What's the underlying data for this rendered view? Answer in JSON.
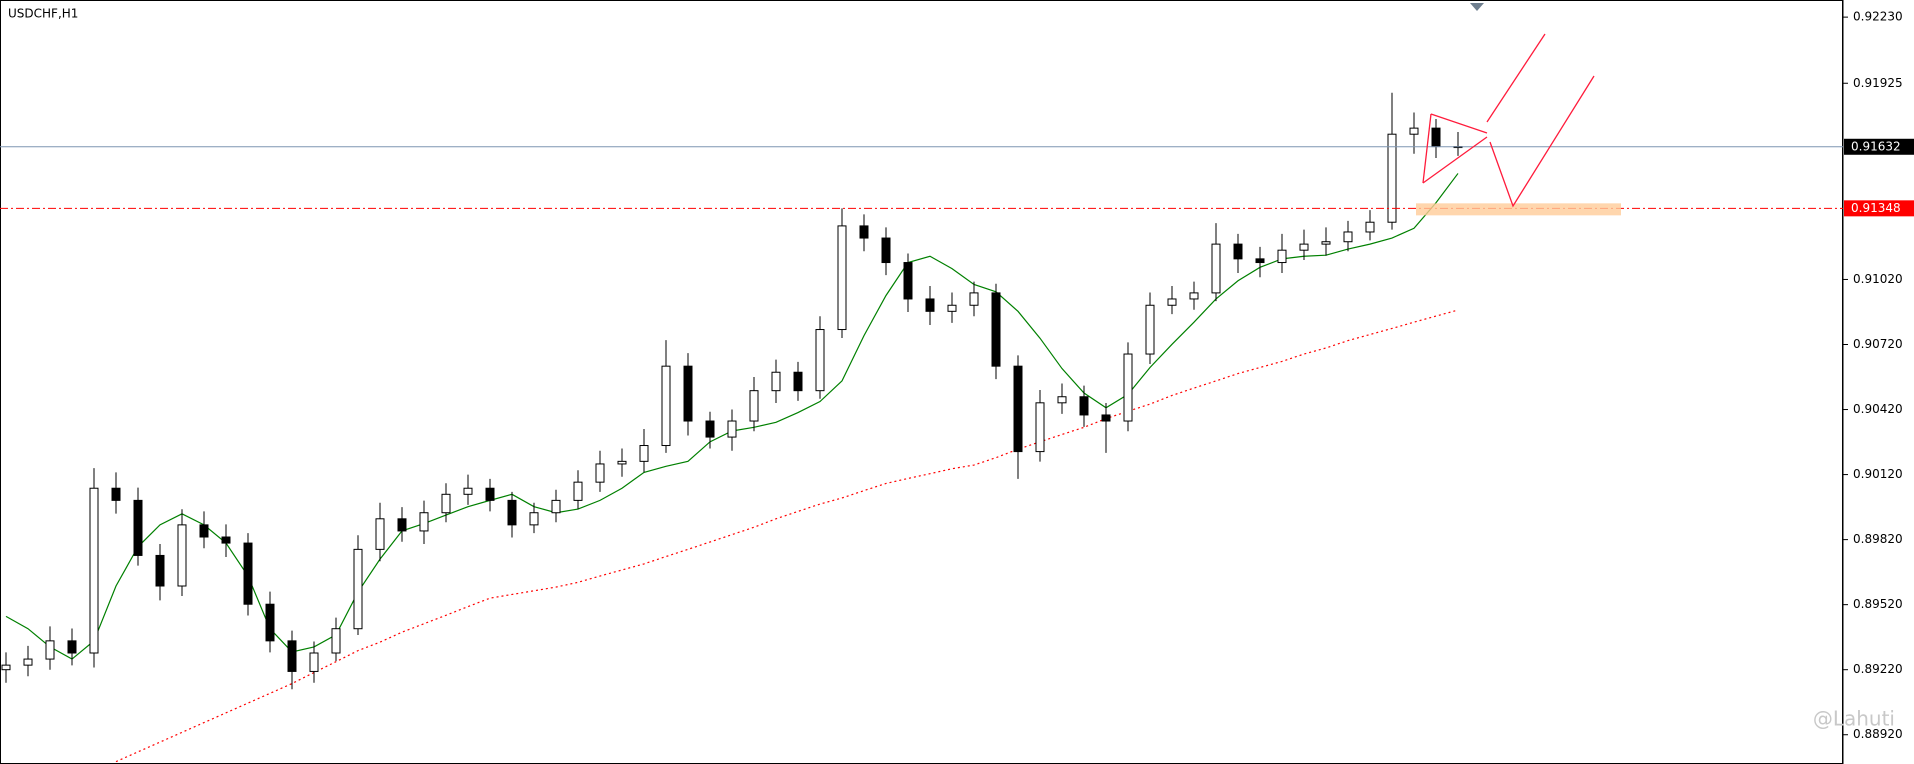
{
  "chart_data": {
    "type": "candlestick",
    "title": "USDCHF,H1",
    "open": [
      0.8922,
      0.89241,
      0.89269,
      0.89353,
      0.89297,
      0.90057,
      0.90001,
      0.89747,
      0.89606,
      0.89888,
      0.89832,
      0.89804,
      0.89522,
      0.89353,
      0.89212,
      0.89297,
      0.89409,
      0.89775,
      0.89916,
      0.8986,
      0.89944,
      0.90029,
      0.90057,
      0.90001,
      0.89888,
      0.89944,
      0.90001,
      0.90085,
      0.90169,
      0.90181,
      0.90254,
      0.9062,
      0.90367,
      0.90293,
      0.90367,
      0.90507,
      0.90592,
      0.90507,
      0.90789,
      0.91267,
      0.91211,
      0.91098,
      0.9093,
      0.90873,
      0.90901,
      0.90958,
      0.9062,
      0.90226,
      0.90451,
      0.90479,
      0.90395,
      0.90367,
      0.90676,
      0.90901,
      0.9093,
      0.90958,
      0.91183,
      0.91115,
      0.91098,
      0.91155,
      0.91183,
      0.91194,
      0.91239,
      0.91284,
      0.9169,
      0.91718,
      0.91633
    ],
    "high": [
      0.893,
      0.8933,
      0.8942,
      0.8941,
      0.9015,
      0.9013,
      0.9006,
      0.898,
      0.8996,
      0.8995,
      0.8989,
      0.8985,
      0.8958,
      0.894,
      0.8935,
      0.8946,
      0.8984,
      0.8999,
      0.8997,
      0.9,
      0.9008,
      0.9012,
      0.901,
      0.9004,
      0.8999,
      0.9005,
      0.9014,
      0.9023,
      0.9024,
      0.9033,
      0.9074,
      0.9068,
      0.9041,
      0.9042,
      0.9057,
      0.9065,
      0.9064,
      0.9085,
      0.91348,
      0.9132,
      0.9126,
      0.9114,
      0.9099,
      0.9096,
      0.9101,
      0.91,
      0.9067,
      0.9051,
      0.9054,
      0.9053,
      0.9045,
      0.9073,
      0.9096,
      0.9099,
      0.9101,
      0.9128,
      0.9123,
      0.9117,
      0.9123,
      0.9125,
      0.9126,
      0.9129,
      0.9134,
      0.91881,
      0.9179,
      0.9176,
      0.917
    ],
    "low": [
      0.8916,
      0.8919,
      0.8922,
      0.8924,
      0.8923,
      0.8994,
      0.897,
      0.8954,
      0.8956,
      0.8978,
      0.8974,
      0.8947,
      0.893,
      0.8913,
      0.8916,
      0.8926,
      0.8938,
      0.8972,
      0.8981,
      0.898,
      0.899,
      0.8998,
      0.8995,
      0.8983,
      0.8985,
      0.899,
      0.8996,
      0.9004,
      0.9011,
      0.9013,
      0.9022,
      0.903,
      0.9024,
      0.9023,
      0.9032,
      0.9045,
      0.9046,
      0.9047,
      0.9075,
      0.9115,
      0.9104,
      0.9087,
      0.9081,
      0.9082,
      0.9085,
      0.9056,
      0.901,
      0.9018,
      0.904,
      0.9034,
      0.9022,
      0.9032,
      0.9063,
      0.9086,
      0.9088,
      0.9092,
      0.9105,
      0.9103,
      0.9105,
      0.9111,
      0.9113,
      0.9115,
      0.912,
      0.9125,
      0.916,
      0.9158,
      0.9159
    ],
    "close": [
      0.89241,
      0.89269,
      0.89353,
      0.89297,
      0.90057,
      0.90001,
      0.89747,
      0.89606,
      0.89888,
      0.89832,
      0.89804,
      0.89522,
      0.89353,
      0.89212,
      0.89297,
      0.89409,
      0.89775,
      0.89916,
      0.8986,
      0.89944,
      0.90029,
      0.90057,
      0.90001,
      0.89888,
      0.89944,
      0.90001,
      0.90085,
      0.90169,
      0.90181,
      0.90254,
      0.9062,
      0.90367,
      0.90293,
      0.90367,
      0.90507,
      0.90592,
      0.90507,
      0.90789,
      0.91267,
      0.91211,
      0.91098,
      0.9093,
      0.90873,
      0.90901,
      0.90958,
      0.9062,
      0.90226,
      0.90451,
      0.90479,
      0.90395,
      0.90367,
      0.90676,
      0.90901,
      0.9093,
      0.90958,
      0.91183,
      0.91115,
      0.91098,
      0.91155,
      0.91183,
      0.91194,
      0.91239,
      0.91284,
      0.9169,
      0.91718,
      0.91633,
      0.91632
    ],
    "moving_averages": [
      {
        "color": "#008000",
        "style": "solid",
        "values": [
          0.89466,
          0.89409,
          0.89325,
          0.89269,
          0.89353,
          0.89606,
          0.89787,
          0.89888,
          0.89939,
          0.89888,
          0.89804,
          0.89652,
          0.89409,
          0.89302,
          0.89325,
          0.89381,
          0.89578,
          0.8973,
          0.8986,
          0.89894,
          0.89933,
          0.89972,
          0.90001,
          0.90029,
          0.89972,
          0.89944,
          0.89961,
          0.90001,
          0.90057,
          0.9013,
          0.90158,
          0.90181,
          0.90271,
          0.90321,
          0.90338,
          0.90361,
          0.90406,
          0.90457,
          0.90552,
          0.90761,
          0.90946,
          0.91098,
          0.91127,
          0.9107,
          0.90997,
          0.90963,
          0.90873,
          0.90749,
          0.90609,
          0.90496,
          0.90428,
          0.9049,
          0.90614,
          0.90721,
          0.90823,
          0.9093,
          0.91014,
          0.91076,
          0.91115,
          0.91127,
          0.91132,
          0.9116,
          0.91183,
          0.91211,
          0.91256,
          0.91374,
          0.91509
        ]
      },
      {
        "color": "#ff0000",
        "style": "dotted",
        "values": [
          null,
          null,
          null,
          null,
          null,
          0.88796,
          0.88841,
          0.88886,
          0.88931,
          0.88976,
          0.89021,
          0.89066,
          0.89111,
          0.89156,
          0.89207,
          0.89257,
          0.89308,
          0.89347,
          0.89393,
          0.89432,
          0.89471,
          0.89511,
          0.8955,
          0.89567,
          0.89584,
          0.89601,
          0.89623,
          0.89652,
          0.8968,
          0.89708,
          0.89742,
          0.89775,
          0.89809,
          0.89843,
          0.89877,
          0.89916,
          0.8995,
          0.89984,
          0.90012,
          0.90046,
          0.90079,
          0.90102,
          0.90124,
          0.90147,
          0.90164,
          0.90198,
          0.90237,
          0.90271,
          0.90305,
          0.90338,
          0.90378,
          0.90412,
          0.90445,
          0.90485,
          0.90519,
          0.90552,
          0.90586,
          0.90614,
          0.90642,
          0.90676,
          0.90704,
          0.90738,
          0.90766,
          0.90794,
          0.90823,
          0.90851,
          0.90879
        ]
      }
    ],
    "price_lines": [
      {
        "value": 0.91632,
        "color": "#7f96b2",
        "label_color": "#000000",
        "style": "solid"
      },
      {
        "value": 0.91348,
        "color": "#ff0000",
        "label_color": "#ff0000",
        "style": "dashdot"
      }
    ],
    "ylim": [
      0.88785,
      0.92309
    ],
    "yticks": [
      {
        "value": 0.9223,
        "label": "0.92230"
      },
      0.91925,
      {
        "value": 0.9102,
        "label": "0.91020"
      },
      {
        "value": 0.9072,
        "label": "0.90720"
      },
      {
        "value": 0.9042,
        "label": "0.90420"
      },
      {
        "value": 0.9012,
        "label": "0.90120"
      },
      {
        "value": 0.8982,
        "label": "0.89820"
      },
      {
        "value": 0.8952,
        "label": "0.89520"
      },
      {
        "value": 0.8922,
        "label": "0.89220"
      },
      {
        "value": 0.8892,
        "label": "0.88920"
      }
    ],
    "watermark": "@Lahuti"
  }
}
